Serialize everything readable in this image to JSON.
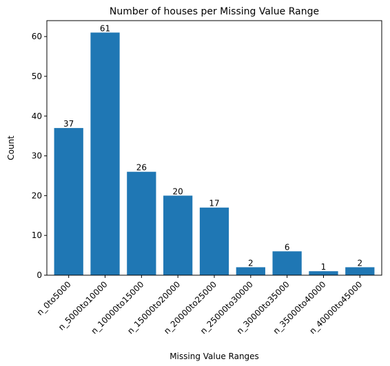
{
  "chart_data": {
    "type": "bar",
    "title": "Number of houses per Missing Value Range",
    "xlabel": "Missing Value Ranges",
    "ylabel": "Count",
    "categories": [
      "n_0to5000",
      "n_5000to10000",
      "n_10000to15000",
      "n_15000to20000",
      "n_20000to25000",
      "n_25000to30000",
      "n_30000to35000",
      "n_35000to40000",
      "n_40000to45000"
    ],
    "values": [
      37,
      61,
      26,
      20,
      17,
      2,
      6,
      1,
      2
    ],
    "ylim": [
      0,
      64
    ],
    "yticks": [
      0,
      10,
      20,
      30,
      40,
      50,
      60
    ],
    "bar_color": "#1f77b4",
    "grid": false,
    "legend": "none",
    "data_labels": true
  }
}
